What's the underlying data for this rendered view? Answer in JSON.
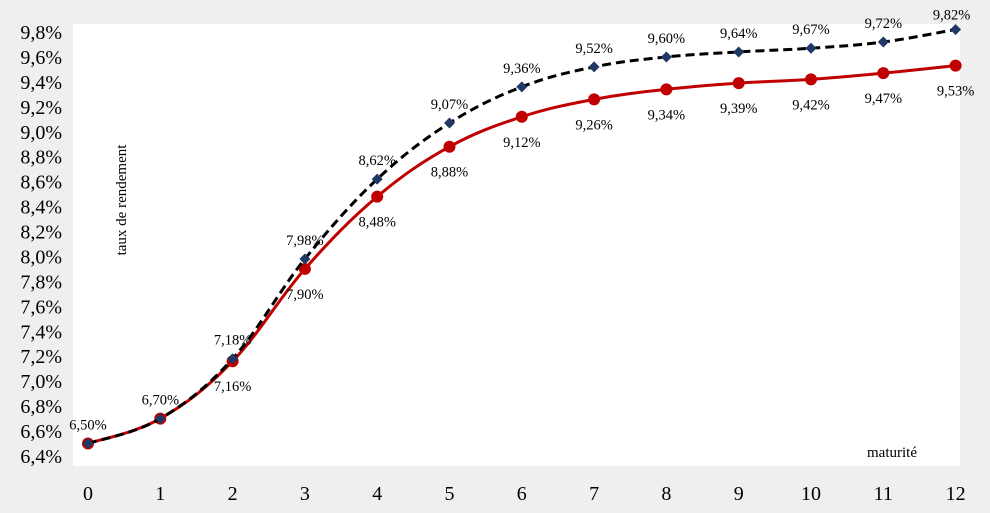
{
  "chart_data": {
    "type": "line",
    "x": [
      0,
      1,
      2,
      3,
      4,
      5,
      6,
      7,
      8,
      9,
      10,
      11,
      12
    ],
    "xlabel": "maturité",
    "ylabel": "taux de rendement",
    "ylim": [
      6.4,
      9.8
    ],
    "yticks": [
      "6,4%",
      "6,6%",
      "6,8%",
      "7,0%",
      "7,2%",
      "7,4%",
      "7,6%",
      "7,8%",
      "8,0%",
      "8,2%",
      "8,4%",
      "8,6%",
      "8,8%",
      "9,0%",
      "9,2%",
      "9,4%",
      "9,6%",
      "9,8%"
    ],
    "xticks": [
      "0",
      "1",
      "2",
      "3",
      "4",
      "5",
      "6",
      "7",
      "8",
      "9",
      "10",
      "11",
      "12"
    ],
    "grid": false,
    "legend": "none",
    "series": [
      {
        "values": [
          6.5,
          6.7,
          7.18,
          7.98,
          8.62,
          9.07,
          9.36,
          9.52,
          9.6,
          9.64,
          9.67,
          9.72,
          9.82
        ],
        "labels": [
          "6,50%",
          "6,70%",
          "7,18%",
          "7,98%",
          "8,62%",
          "9,07%",
          "9,36%",
          "9,52%",
          "9,60%",
          "9,64%",
          "9,67%",
          "9,72%",
          "9,82%"
        ],
        "line_color": "#000000",
        "line_style": "dashed",
        "marker": "diamond",
        "marker_color": "#1f3864"
      },
      {
        "values": [
          6.5,
          6.7,
          7.16,
          7.9,
          8.48,
          8.88,
          9.12,
          9.26,
          9.34,
          9.39,
          9.42,
          9.47,
          9.53
        ],
        "labels": [
          "",
          "",
          "7,16%",
          "7,90%",
          "8,48%",
          "8,88%",
          "9,12%",
          "9,26%",
          "9,34%",
          "9,39%",
          "9,42%",
          "9,47%",
          "9,53%"
        ],
        "line_color": "#c00000",
        "line_style": "solid",
        "marker": "circle",
        "marker_color": "#c00000"
      }
    ]
  }
}
